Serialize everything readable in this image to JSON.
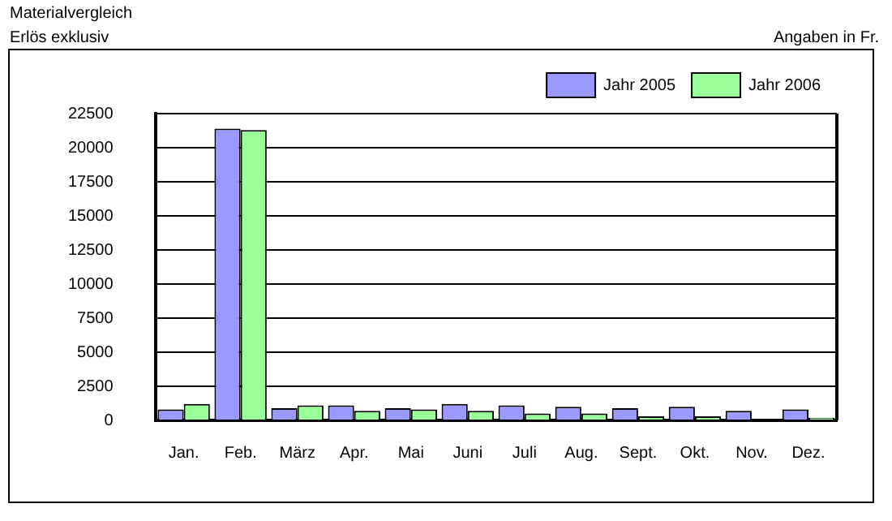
{
  "chart_data": {
    "type": "bar",
    "title": "Materialvergleich",
    "subtitle": "Erlös exklusiv",
    "annotations": [
      "Angaben in Fr."
    ],
    "categories": [
      "Jan.",
      "Feb.",
      "März",
      "Apr.",
      "Mai",
      "Juni",
      "Juli",
      "Aug.",
      "Sept.",
      "Okt.",
      "Nov.",
      "Dez."
    ],
    "series": [
      {
        "name": "Jahr 2005",
        "color": "#9999ff",
        "values": [
          800,
          21400,
          900,
          1100,
          900,
          1200,
          1100,
          1000,
          900,
          1000,
          700,
          800
        ]
      },
      {
        "name": "Jahr 2006",
        "color": "#99ff99",
        "values": [
          1200,
          21300,
          1100,
          700,
          800,
          700,
          500,
          500,
          300,
          300,
          null,
          200
        ]
      }
    ],
    "ylim": [
      0,
      22500
    ],
    "yticks": [
      0,
      2500,
      5000,
      7500,
      10000,
      12500,
      15000,
      17500,
      20000,
      22500
    ],
    "grid": "y",
    "legend": "top right"
  }
}
